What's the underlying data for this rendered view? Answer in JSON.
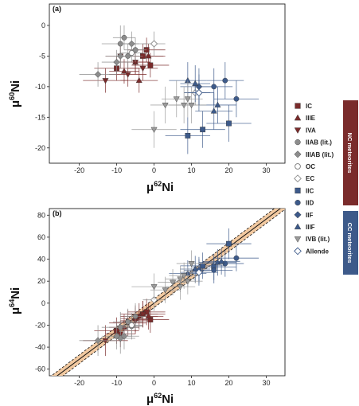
{
  "figure": {
    "panel_a_label": "(a)",
    "panel_b_label": "(b)",
    "x_axis_label_a": "μ62Ni",
    "y_axis_label_a": "μ60Ni",
    "x_axis_label_b": "μ62Ni",
    "y_axis_label_b": "μ64Ni",
    "colors": {
      "nc_red": "#7a2b2b",
      "nc_gray": "#8c8c8c",
      "cc_blue": "#3d5a8a",
      "cc_gray": "#9a9a9a",
      "band_fill": "#f2c9a0",
      "nc_group_box": "#7a2b2b",
      "cc_group_box": "#3d5a8a"
    }
  },
  "legend": {
    "nc_group_label": "NC meteorites",
    "cc_group_label": "CC meteorites",
    "items": [
      {
        "key": "IC",
        "label": "IC",
        "marker": "square",
        "color": "#7a2b2b",
        "group": "NC"
      },
      {
        "key": "IIIE",
        "label": "IIIE",
        "marker": "triangle-up",
        "color": "#7a2b2b",
        "group": "NC"
      },
      {
        "key": "IVA",
        "label": "IVA",
        "marker": "triangle-down",
        "color": "#7a2b2b",
        "group": "NC"
      },
      {
        "key": "IIAB",
        "label": "IIAB (lit.)",
        "marker": "circle",
        "color": "#8c8c8c",
        "group": "NC"
      },
      {
        "key": "IIIAB",
        "label": "IIIAB (lit.)",
        "marker": "diamond",
        "color": "#8c8c8c",
        "group": "NC"
      },
      {
        "key": "OC",
        "label": "OC",
        "marker": "circle-open",
        "color": "#8c8c8c",
        "group": "NC"
      },
      {
        "key": "EC",
        "label": "EC",
        "marker": "diamond-open",
        "color": "#8c8c8c",
        "group": "NC"
      },
      {
        "key": "IIC",
        "label": "IIC",
        "marker": "square",
        "color": "#3d5a8a",
        "group": "CC"
      },
      {
        "key": "IID",
        "label": "IID",
        "marker": "circle",
        "color": "#3d5a8a",
        "group": "CC"
      },
      {
        "key": "IIF",
        "label": "IIF",
        "marker": "diamond",
        "color": "#3d5a8a",
        "group": "CC"
      },
      {
        "key": "IIIF",
        "label": "IIIF",
        "marker": "triangle-up",
        "color": "#3d5a8a",
        "group": "CC"
      },
      {
        "key": "IVB",
        "label": "IVB (lit.)",
        "marker": "triangle-down",
        "color": "#9a9a9a",
        "group": "CC"
      },
      {
        "key": "Allende",
        "label": "Allende",
        "marker": "diamond-open",
        "color": "#3d5a8a",
        "group": "CC"
      }
    ]
  },
  "chart_data": [
    {
      "type": "scatter",
      "panel": "(a)",
      "xlabel": "μ62Ni",
      "ylabel": "μ60Ni",
      "xlim": [
        -28,
        35
      ],
      "ylim": [
        -22.5,
        3.5
      ],
      "xticks": [
        -20,
        -10,
        0,
        10,
        20,
        30
      ],
      "yticks": [
        0,
        -5,
        -10,
        -15,
        -20
      ],
      "grid": false,
      "series": [
        {
          "name": "IC",
          "points": [
            {
              "x": -3,
              "y": -5,
              "ex": 6,
              "ey": 2
            },
            {
              "x": -2,
              "y": -4,
              "ex": 5,
              "ey": 2
            },
            {
              "x": -10,
              "y": -7,
              "ex": 6,
              "ey": 2
            },
            {
              "x": -1,
              "y": -6.5,
              "ex": 5,
              "ey": 2
            }
          ]
        },
        {
          "name": "IIIE",
          "points": [
            {
              "x": -5,
              "y": -6,
              "ex": 4,
              "ey": 2
            },
            {
              "x": -1.5,
              "y": -5,
              "ex": 4,
              "ey": 2
            },
            {
              "x": -8,
              "y": -7.5,
              "ex": 4,
              "ey": 2
            },
            {
              "x": -4,
              "y": -9,
              "ex": 5,
              "ey": 2
            }
          ]
        },
        {
          "name": "IVA",
          "points": [
            {
              "x": -13,
              "y": -9,
              "ex": 6,
              "ey": 2
            },
            {
              "x": -7,
              "y": -8,
              "ex": 5,
              "ey": 2
            },
            {
              "x": -5,
              "y": -6,
              "ex": 4,
              "ey": 2
            },
            {
              "x": -3,
              "y": -7,
              "ex": 4,
              "ey": 2
            },
            {
              "x": -9,
              "y": -5,
              "ex": 4,
              "ey": 2
            }
          ]
        },
        {
          "name": "IIAB (lit.)",
          "points": [
            {
              "x": -9,
              "y": -3,
              "ex": 5,
              "ey": 3
            },
            {
              "x": -7,
              "y": -5,
              "ex": 4,
              "ey": 2
            },
            {
              "x": -5,
              "y": -4,
              "ex": 3,
              "ey": 2
            },
            {
              "x": -8,
              "y": -2,
              "ex": 3,
              "ey": 2
            }
          ]
        },
        {
          "name": "IIIAB (lit.)",
          "points": [
            {
              "x": -15,
              "y": -8,
              "ex": 5,
              "ey": 2
            },
            {
              "x": -9,
              "y": -5,
              "ex": 4,
              "ey": 2
            },
            {
              "x": -6,
              "y": -3,
              "ex": 4,
              "ey": 2
            },
            {
              "x": -10,
              "y": -6,
              "ex": 4,
              "ey": 2
            }
          ]
        },
        {
          "name": "OC",
          "points": [
            {
              "x": -6,
              "y": -4.5,
              "ex": 3,
              "ey": 1.5
            }
          ]
        },
        {
          "name": "EC",
          "points": [
            {
              "x": 0,
              "y": -3,
              "ex": 3,
              "ey": 2
            },
            {
              "x": 11,
              "y": -11,
              "ex": 3,
              "ey": 2
            }
          ]
        },
        {
          "name": "IIC",
          "points": [
            {
              "x": 9,
              "y": -18,
              "ex": 6,
              "ey": 3
            },
            {
              "x": 13,
              "y": -17,
              "ex": 6,
              "ey": 3
            },
            {
              "x": 20,
              "y": -16,
              "ex": 6,
              "ey": 3
            }
          ]
        },
        {
          "name": "IID",
          "points": [
            {
              "x": 19,
              "y": -9,
              "ex": 5,
              "ey": 3
            },
            {
              "x": 22,
              "y": -12,
              "ex": 6,
              "ey": 3
            },
            {
              "x": 16,
              "y": -10,
              "ex": 5,
              "ey": 3
            },
            {
              "x": 12,
              "y": -11,
              "ex": 4,
              "ey": 3
            }
          ]
        },
        {
          "name": "IIF",
          "points": [
            {
              "x": 12,
              "y": -10,
              "ex": 5,
              "ey": 3
            }
          ]
        },
        {
          "name": "IIIF",
          "points": [
            {
              "x": 9,
              "y": -9,
              "ex": 5,
              "ey": 3
            },
            {
              "x": 17,
              "y": -13,
              "ex": 5,
              "ey": 3
            },
            {
              "x": 16,
              "y": -14,
              "ex": 5,
              "ey": 3
            },
            {
              "x": 11,
              "y": -9.5,
              "ex": 4,
              "ey": 3
            }
          ]
        },
        {
          "name": "IVB (lit.)",
          "points": [
            {
              "x": 0,
              "y": -17,
              "ex": 6,
              "ey": 3
            },
            {
              "x": 3,
              "y": -13,
              "ex": 4,
              "ey": 3
            },
            {
              "x": 6,
              "y": -12,
              "ex": 4,
              "ey": 3
            },
            {
              "x": 8,
              "y": -13,
              "ex": 4,
              "ey": 3
            },
            {
              "x": 9,
              "y": -12,
              "ex": 4,
              "ey": 3
            },
            {
              "x": 10,
              "y": -13,
              "ex": 4,
              "ey": 3
            }
          ]
        },
        {
          "name": "Allende",
          "points": [
            {
              "x": 12,
              "y": -11,
              "ex": 3,
              "ey": 2
            }
          ]
        }
      ]
    },
    {
      "type": "scatter",
      "panel": "(b)",
      "xlabel": "μ62Ni",
      "ylabel": "μ64Ni",
      "xlim": [
        -28,
        35
      ],
      "ylim": [
        -66,
        86
      ],
      "xticks": [
        -20,
        -10,
        0,
        10,
        20,
        30
      ],
      "yticks": [
        80,
        60,
        40,
        20,
        0,
        -20,
        -40,
        -60
      ],
      "grid": false,
      "regression": {
        "slope": 2.55,
        "intercept": 0,
        "band": 4
      },
      "series": [
        {
          "name": "IC",
          "points": [
            {
              "x": -3,
              "y": -10,
              "ex": 6,
              "ey": 12
            },
            {
              "x": -2,
              "y": -8,
              "ex": 5,
              "ey": 12
            },
            {
              "x": -10,
              "y": -25,
              "ex": 6,
              "ey": 12
            },
            {
              "x": -1,
              "y": -15,
              "ex": 5,
              "ey": 12
            }
          ]
        },
        {
          "name": "IIIE",
          "points": [
            {
              "x": -5,
              "y": -14,
              "ex": 4,
              "ey": 12
            },
            {
              "x": -1.5,
              "y": -12,
              "ex": 4,
              "ey": 12
            },
            {
              "x": -8,
              "y": -22,
              "ex": 4,
              "ey": 12
            },
            {
              "x": -4,
              "y": -12,
              "ex": 5,
              "ey": 12
            }
          ]
        },
        {
          "name": "IVA",
          "points": [
            {
              "x": -13,
              "y": -34,
              "ex": 6,
              "ey": 14
            },
            {
              "x": -7,
              "y": -18,
              "ex": 5,
              "ey": 12
            },
            {
              "x": -5,
              "y": -16,
              "ex": 4,
              "ey": 12
            },
            {
              "x": -3,
              "y": -10,
              "ex": 4,
              "ey": 12
            },
            {
              "x": -9,
              "y": -28,
              "ex": 4,
              "ey": 12
            }
          ]
        },
        {
          "name": "IIAB (lit.)",
          "points": [
            {
              "x": -9,
              "y": -22,
              "ex": 5,
              "ey": 14
            },
            {
              "x": -7,
              "y": -17,
              "ex": 4,
              "ey": 12
            },
            {
              "x": -5,
              "y": -12,
              "ex": 3,
              "ey": 12
            },
            {
              "x": -6,
              "y": -21,
              "ex": 3,
              "ey": 12
            }
          ]
        },
        {
          "name": "IIIAB (lit.)",
          "points": [
            {
              "x": -15,
              "y": -34,
              "ex": 5,
              "ey": 14
            },
            {
              "x": -9,
              "y": -32,
              "ex": 4,
              "ey": 14
            },
            {
              "x": -8,
              "y": -30,
              "ex": 4,
              "ey": 12
            },
            {
              "x": -10,
              "y": -30,
              "ex": 4,
              "ey": 12
            }
          ]
        },
        {
          "name": "OC",
          "points": [
            {
              "x": -6,
              "y": -20,
              "ex": 3,
              "ey": 10
            }
          ]
        },
        {
          "name": "EC",
          "points": [
            {
              "x": 0,
              "y": 3,
              "ex": 3,
              "ey": 10
            },
            {
              "x": 11,
              "y": 28,
              "ex": 3,
              "ey": 10
            }
          ]
        },
        {
          "name": "IIC",
          "points": [
            {
              "x": 20,
              "y": 54,
              "ex": 6,
              "ey": 14
            },
            {
              "x": 13,
              "y": 34,
              "ex": 6,
              "ey": 12
            },
            {
              "x": 16,
              "y": 33,
              "ex": 6,
              "ey": 12
            }
          ]
        },
        {
          "name": "IID",
          "points": [
            {
              "x": 19,
              "y": 36,
              "ex": 5,
              "ey": 12
            },
            {
              "x": 22,
              "y": 41,
              "ex": 6,
              "ey": 12
            },
            {
              "x": 16,
              "y": 30,
              "ex": 5,
              "ey": 12
            },
            {
              "x": 12,
              "y": 30,
              "ex": 4,
              "ey": 12
            }
          ]
        },
        {
          "name": "IIF",
          "points": [
            {
              "x": 12,
              "y": 28,
              "ex": 5,
              "ey": 12
            }
          ]
        },
        {
          "name": "IIIF",
          "points": [
            {
              "x": 9,
              "y": 27,
              "ex": 5,
              "ey": 12
            },
            {
              "x": 17,
              "y": 37,
              "ex": 5,
              "ey": 12
            },
            {
              "x": 18,
              "y": 38,
              "ex": 5,
              "ey": 12
            },
            {
              "x": 11,
              "y": 31,
              "ex": 4,
              "ey": 12
            }
          ]
        },
        {
          "name": "IVB (lit.)",
          "points": [
            {
              "x": 0,
              "y": 15,
              "ex": 6,
              "ey": 12
            },
            {
              "x": 3,
              "y": 12,
              "ex": 4,
              "ey": 12
            },
            {
              "x": 5,
              "y": 19,
              "ex": 4,
              "ey": 12
            },
            {
              "x": 7,
              "y": 22,
              "ex": 4,
              "ey": 12
            },
            {
              "x": 8,
              "y": 25,
              "ex": 4,
              "ey": 12
            },
            {
              "x": 9,
              "y": 20,
              "ex": 4,
              "ey": 12
            },
            {
              "x": 10,
              "y": 36,
              "ex": 4,
              "ey": 12
            },
            {
              "x": 7,
              "y": 15,
              "ex": 4,
              "ey": 12
            }
          ]
        },
        {
          "name": "Allende",
          "points": [
            {
              "x": 12,
              "y": 28,
              "ex": 3,
              "ey": 8
            }
          ]
        }
      ]
    }
  ]
}
